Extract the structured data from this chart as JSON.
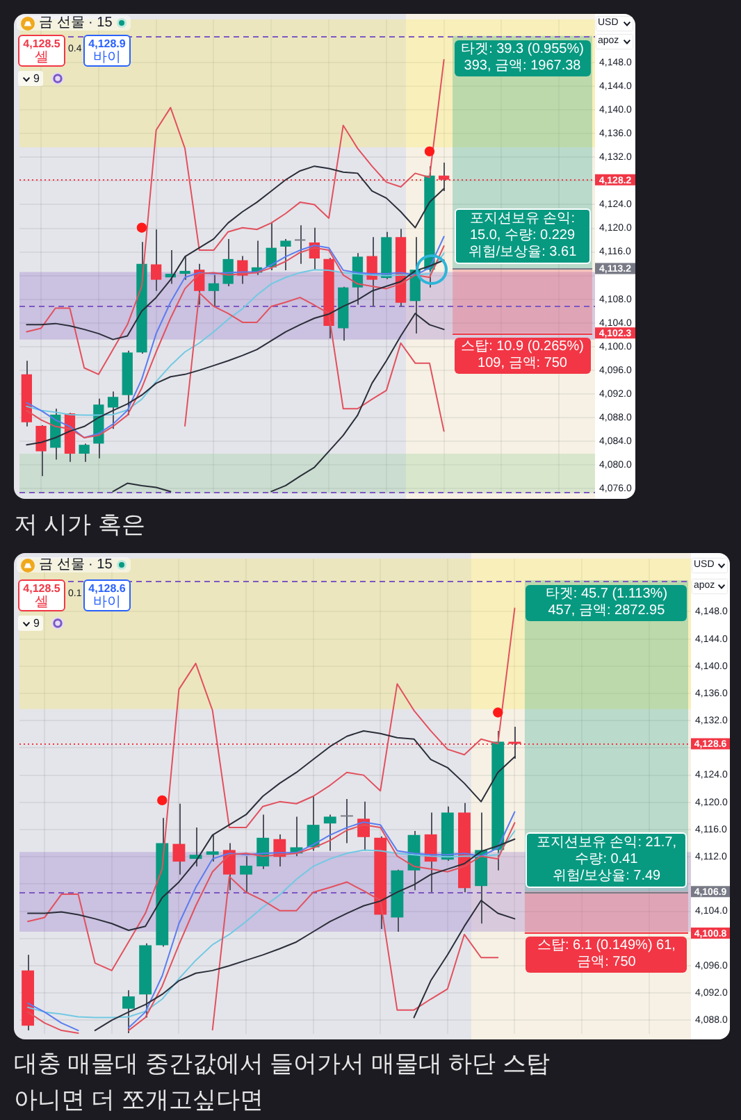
{
  "chart_data": [
    {
      "type": "candlestick",
      "title": "금 선물 · 15",
      "categories": [
        null,
        null,
        null,
        null,
        null,
        null,
        null,
        null,
        null,
        null,
        null,
        null,
        null,
        null,
        null,
        null,
        null,
        null,
        null,
        null,
        null,
        null,
        null,
        null,
        null,
        null,
        null,
        null,
        null,
        null,
        null,
        null,
        null,
        null,
        null,
        null,
        null,
        null,
        null,
        null
      ],
      "ohlc": [
        [
          4095.3,
          4097.6,
          4086.5,
          4087.2
        ],
        [
          4086.6,
          4086.7,
          4078.1,
          4082.3
        ],
        [
          4082.9,
          4089.5,
          4080.9,
          4088.5
        ],
        [
          4088.7,
          4088.8,
          4080.5,
          4081.9
        ],
        [
          4081.9,
          4083.6,
          4080.5,
          4083.4
        ],
        [
          4083.6,
          4091.2,
          4081.1,
          4090.2
        ],
        [
          4089.7,
          4092.4,
          4086.1,
          4091.5
        ],
        [
          4091.8,
          4099.3,
          4088.4,
          4099.0
        ],
        [
          4099.0,
          4117.7,
          4098.8,
          4114.0
        ],
        [
          4113.9,
          4119.8,
          4109.4,
          4111.3
        ],
        [
          4111.7,
          4116.3,
          4110.6,
          4112.3
        ],
        [
          4112.3,
          4115.2,
          4111.3,
          4112.8
        ],
        [
          4113.0,
          4114.0,
          4107.1,
          4109.4
        ],
        [
          4109.4,
          4112.1,
          4106.8,
          4110.7
        ],
        [
          4110.6,
          4118.2,
          4110.2,
          4114.8
        ],
        [
          4114.6,
          4115.3,
          4110.6,
          4112.0
        ],
        [
          4112.5,
          4117.9,
          4112.1,
          4113.4
        ],
        [
          4113.4,
          4120.9,
          4112.9,
          4116.7
        ],
        [
          4116.9,
          4118.2,
          4112.9,
          4117.9
        ],
        [
          4117.9,
          4120.5,
          4114.0,
          4117.9
        ],
        [
          4117.6,
          4120.1,
          4112.9,
          4114.9
        ],
        [
          4114.8,
          4115.0,
          4101.4,
          4103.5
        ],
        [
          4103.1,
          4110.1,
          4101.0,
          4110.0
        ],
        [
          4110.0,
          4115.8,
          4107.1,
          4115.2
        ],
        [
          4115.3,
          4118.5,
          4106.8,
          4111.3
        ],
        [
          4111.6,
          4119.4,
          4111.4,
          4118.5
        ],
        [
          4118.5,
          4119.9,
          4106.8,
          4107.4
        ],
        [
          4107.7,
          4118.5,
          4102.2,
          4113.0
        ],
        [
          4113.0,
          4130.5,
          4110.0,
          4128.9
        ],
        [
          4128.9,
          4131.1,
          4126.3,
          4128.2
        ],
        null,
        null,
        null,
        null,
        null,
        null,
        null,
        null,
        null,
        null
      ],
      "colors": [
        "#f23645",
        "#f23645",
        "#089981",
        "#f23645",
        "#089981",
        "#089981",
        "#089981",
        "#089981",
        "#089981",
        "#f23645",
        "#089981",
        "#089981",
        "#f23645",
        "#089981",
        "#089981",
        "#f23645",
        "#089981",
        "#089981",
        "#089981",
        "#787b86",
        "#f23645",
        "#f23645",
        "#089981",
        "#089981",
        "#f23645",
        "#089981",
        "#f23645",
        "#089981",
        "#089981",
        "#f23645",
        null,
        null,
        null,
        null,
        null,
        null,
        null,
        null,
        null,
        null
      ],
      "series": [
        {
          "type": "line",
          "color": "#2a2e39",
          "values": [
            4103.7,
            4103.7,
            4103.9,
            4103.5,
            4102.9,
            4102.2,
            4101.2,
            4101.8,
            4106.0,
            4108.3,
            4111.3,
            4115.2,
            4116.7,
            4118.2,
            4120.9,
            4122.8,
            4124.4,
            4126.3,
            4128.2,
            4129.7,
            4130.5,
            4130.1,
            4129.5,
            4129.3,
            4126.3,
            4125.1,
            4122.8,
            4120.1,
            4124.4,
            4126.7,
            null,
            null,
            null,
            null,
            null,
            null,
            null,
            null,
            null,
            null
          ]
        },
        {
          "type": "line",
          "color": "#2a2e39",
          "values": [
            4083.4,
            4083.8,
            4084.6,
            4085.7,
            4086.5,
            4088.0,
            4089.2,
            4090.3,
            4091.8,
            4093.8,
            4094.9,
            4095.3,
            4096.0,
            4096.8,
            4097.6,
            4098.5,
            4099.5,
            4101.0,
            4102.5,
            4103.7,
            4104.8,
            4105.5,
            4106.8,
            4107.9,
            4109.4,
            4110.2,
            4111.0,
            4112.8,
            4113.6,
            4114.6,
            null,
            null,
            null,
            null,
            null,
            null,
            null,
            null,
            null,
            null
          ]
        },
        {
          "type": "line",
          "color": "#2a2e39",
          "values": [
            null,
            null,
            null,
            null,
            null,
            null,
            4075.5,
            4076.9,
            4076.5,
            4076.2,
            4075.5,
            null,
            null,
            null,
            null,
            null,
            null,
            4075.5,
            4076.5,
            4078.1,
            4079.6,
            4082.3,
            4085.0,
            4088.4,
            4093.8,
            4097.6,
            4101.8,
            4105.6,
            4103.7,
            4102.9,
            null,
            null,
            null,
            null,
            null,
            null,
            null,
            null,
            null,
            null
          ]
        },
        {
          "type": "line",
          "color": "#e2505e",
          "values": [
            4102.5,
            4103.1,
            4106.5,
            4106.5,
            4096.4,
            4095.3,
            4099.5,
            4103.7,
            4110.2,
            4136.6,
            4140.4,
            4133.5,
            4116.3,
            4116.3,
            4119.4,
            4120.1,
            4119.8,
            4120.9,
            4122.5,
            4124.4,
            4124.0,
            4121.7,
            4137.4,
            4133.5,
            4130.5,
            4127.8,
            4127.0,
            4129.3,
            4128.6,
            4148.5,
            null,
            null,
            null,
            null,
            null,
            null,
            null,
            null,
            null,
            null
          ]
        },
        {
          "type": "line",
          "color": "#e2505e",
          "values": [
            null,
            null,
            null,
            null,
            null,
            null,
            null,
            null,
            null,
            null,
            null,
            4086.6,
            4109.1,
            4106.8,
            4105.6,
            4104.1,
            4104.1,
            4106.8,
            4107.5,
            4108.3,
            4107.0,
            4105.6,
            4089.5,
            4089.5,
            4091.1,
            4092.6,
            4100.6,
            4097.2,
            4097.2,
            4085.7,
            null,
            null,
            null,
            null,
            null,
            null,
            null,
            null,
            null,
            null
          ]
        },
        {
          "type": "line",
          "color": "#e2505e",
          "values": [
            4089.2,
            4087.6,
            4086.5,
            4086.1,
            4084.6,
            4085.0,
            4086.5,
            4088.4,
            4093.0,
            4099.1,
            4104.8,
            4109.8,
            4112.3,
            4112.5,
            4112.1,
            4112.3,
            4112.5,
            4113.3,
            4114.4,
            4115.9,
            4116.7,
            4116.3,
            4112.1,
            4110.6,
            4110.2,
            4109.8,
            4110.6,
            4112.1,
            4111.7,
            4117.0,
            null,
            null,
            null,
            null,
            null,
            null,
            null,
            null,
            null,
            null
          ]
        },
        {
          "type": "line",
          "color": "#5b7cf0",
          "values": [
            4090.5,
            4089.2,
            4087.6,
            4086.5,
            4084.6,
            4085.3,
            4086.9,
            4089.2,
            4094.5,
            4102.2,
            4107.5,
            4111.7,
            4112.5,
            4112.3,
            4112.5,
            4112.6,
            4112.6,
            4113.8,
            4115.2,
            4116.3,
            4117.1,
            4116.7,
            4112.9,
            4112.5,
            4112.3,
            4112.3,
            4112.5,
            4112.1,
            4113.3,
            4118.6,
            null,
            null,
            null,
            null,
            null,
            null,
            null,
            null,
            null,
            null
          ]
        },
        {
          "type": "line",
          "color": "#71c9e3",
          "values": [
            4089.9,
            4089.2,
            4088.9,
            4088.5,
            4088.4,
            4088.4,
            4088.5,
            4089.3,
            4091.1,
            4094.1,
            4096.8,
            4099.1,
            4100.6,
            4102.5,
            4104.6,
            4106.4,
            4108.7,
            4110.6,
            4111.7,
            4112.5,
            4113.0,
            4112.9,
            4112.5,
            4112.3,
            4112.1,
            4112.0,
            4112.1,
            4112.1,
            4112.3,
            4115.8,
            null,
            null,
            null,
            null,
            null,
            null,
            null,
            null,
            null,
            null
          ]
        },
        {
          "type": "scatter",
          "color": "#ff1a1a",
          "marker": "circle",
          "values": [
            null,
            null,
            null,
            null,
            null,
            null,
            null,
            null,
            4120.1,
            null,
            null,
            null,
            null,
            null,
            null,
            null,
            null,
            null,
            null,
            null,
            null,
            null,
            null,
            null,
            null,
            null,
            null,
            null,
            4133.0,
            null,
            null,
            null,
            null,
            null,
            null,
            null,
            null,
            null,
            null,
            null
          ]
        }
      ],
      "ylim": [
        4075.2,
        4155.3
      ],
      "yticks": [
        {
          "value": 4076,
          "label": "4,076.0"
        },
        {
          "value": 4080,
          "label": "4,080.0"
        },
        {
          "value": 4084,
          "label": "4,084.0"
        },
        {
          "value": 4088,
          "label": "4,088.0"
        },
        {
          "value": 4092,
          "label": "4,092.0"
        },
        {
          "value": 4096,
          "label": "4,096.0"
        },
        {
          "value": 4100,
          "label": "4,100.0"
        },
        {
          "value": 4104,
          "label": "4,104.0"
        },
        {
          "value": 4108,
          "label": "4,108.0"
        },
        {
          "value": 4112,
          "label": null
        },
        {
          "value": 4116,
          "label": "4,116.0"
        },
        {
          "value": 4120,
          "label": "4,120.0"
        },
        {
          "value": 4124,
          "label": "4,124.0"
        },
        {
          "value": 4128,
          "label": null
        },
        {
          "value": 4132,
          "label": "4,132.0"
        },
        {
          "value": 4136,
          "label": "4,136.0"
        },
        {
          "value": 4140,
          "label": "4,140.0"
        },
        {
          "value": 4144,
          "label": "4,144.0"
        },
        {
          "value": 4148,
          "label": "4,148.0"
        }
      ],
      "tick_labels": "y",
      "grid": true,
      "bands": [
        {
          "axis": "y",
          "from": 4133.7,
          "to": 4155.3,
          "color": "#ffeb3b"
        },
        {
          "axis": "y",
          "from": 4101.2,
          "to": 4112.6,
          "color": "#7e57c2"
        },
        {
          "axis": "y",
          "from": 4075.2,
          "to": 4081.9,
          "color": "#81c784"
        },
        {
          "axis": "y",
          "from": 4113.2,
          "to": 4152.5,
          "color": "#089981",
          "label": "타겟: 39.3 (0.955%) 393, 금액: 1967.38"
        },
        {
          "axis": "y",
          "from": 4102.3,
          "to": 4113.2,
          "color": "#f23645",
          "label": "스탑: 10.9 (0.265%) 109, 금액: 750"
        }
      ],
      "ref_lines": [
        {
          "axis": "y",
          "value": 4152.5,
          "color": "#7e57c2",
          "line_style": "dashed"
        },
        {
          "axis": "y",
          "value": 4106.8,
          "color": "#7e57c2",
          "line_style": "dashed"
        },
        {
          "axis": "y",
          "value": 4075.4,
          "color": "#7e57c2",
          "line_style": "dashed"
        },
        {
          "axis": "y",
          "value": 4128.2,
          "label": "4,128.2",
          "color": "#f23645",
          "line_style": "dotted"
        },
        {
          "axis": "y",
          "value": 4113.2,
          "label": "4,113.2",
          "color": "#787b86"
        },
        {
          "axis": "y",
          "value": 4102.3,
          "label": "4,102.3",
          "color": "#f23645"
        }
      ],
      "annotations": [
        "4,128.5",
        "셀",
        "0.4",
        "4,128.9",
        "바이",
        "9",
        "USD",
        "apoz",
        {
          "text": "포지션보유 손익: 15.0, 수량: 0.229\n위험/보상율: 3.61",
          "y": 4113.2
        },
        "저 시가 혹은"
      ]
    },
    {
      "type": "candlestick",
      "title": "금 선물 · 15",
      "categories": [
        null,
        null,
        null,
        null,
        null,
        null,
        null,
        null,
        null,
        null,
        null,
        null,
        null,
        null,
        null,
        null,
        null,
        null,
        null,
        null,
        null,
        null,
        null,
        null,
        null,
        null,
        null,
        null,
        null,
        null,
        null,
        null,
        null,
        null,
        null,
        null,
        null,
        null,
        null,
        null
      ],
      "ohlc": [
        [
          4095.3,
          4097.6,
          4086.5,
          4087.2
        ],
        null,
        null,
        null,
        null,
        null,
        [
          4089.7,
          4092.4,
          4086.1,
          4091.5
        ],
        [
          4091.8,
          4099.3,
          4088.4,
          4099.0
        ],
        [
          4099.0,
          4117.7,
          4098.8,
          4114.0
        ],
        [
          4113.9,
          4119.8,
          4109.4,
          4111.3
        ],
        [
          4111.7,
          4116.3,
          4110.6,
          4112.3
        ],
        [
          4112.3,
          4115.2,
          4111.3,
          4112.8
        ],
        [
          4113.0,
          4114.0,
          4107.1,
          4109.4
        ],
        [
          4109.4,
          4112.1,
          4106.8,
          4110.7
        ],
        [
          4110.6,
          4118.2,
          4110.2,
          4114.8
        ],
        [
          4114.6,
          4115.3,
          4110.6,
          4112.0
        ],
        [
          4112.5,
          4117.9,
          4112.1,
          4113.4
        ],
        [
          4113.4,
          4120.9,
          4112.9,
          4116.7
        ],
        [
          4116.9,
          4118.2,
          4112.9,
          4117.9
        ],
        [
          4117.9,
          4120.5,
          4114.0,
          4117.9
        ],
        [
          4117.6,
          4120.1,
          4112.9,
          4114.9
        ],
        [
          4114.8,
          4115.0,
          4101.4,
          4103.5
        ],
        [
          4103.1,
          4110.1,
          4101.0,
          4110.0
        ],
        [
          4110.0,
          4115.8,
          4107.1,
          4115.2
        ],
        [
          4115.3,
          4118.5,
          4106.8,
          4111.3
        ],
        [
          4111.6,
          4119.4,
          4111.4,
          4118.5
        ],
        [
          4118.5,
          4119.9,
          4106.8,
          4107.4
        ],
        [
          4107.7,
          4118.5,
          4102.2,
          4113.0
        ],
        [
          4113.0,
          4130.5,
          4110.0,
          4128.9
        ],
        [
          4128.9,
          4131.1,
          4126.4,
          4128.6
        ],
        null,
        null,
        null,
        null,
        null,
        null,
        null,
        null,
        null,
        null
      ],
      "colors": [
        "#f23645",
        null,
        null,
        null,
        null,
        null,
        "#089981",
        "#089981",
        "#089981",
        "#f23645",
        "#089981",
        "#089981",
        "#f23645",
        "#089981",
        "#089981",
        "#f23645",
        "#089981",
        "#089981",
        "#089981",
        "#787b86",
        "#f23645",
        "#f23645",
        "#089981",
        "#089981",
        "#f23645",
        "#089981",
        "#f23645",
        "#089981",
        "#089981",
        "#f23645",
        null,
        null,
        null,
        null,
        null,
        null,
        null,
        null,
        null,
        null
      ],
      "series": [
        {
          "type": "line",
          "color": "#2a2e39",
          "values": [
            4103.7,
            4103.7,
            4103.9,
            4103.5,
            4102.9,
            4102.2,
            4101.2,
            4101.8,
            4106.0,
            4108.3,
            4111.3,
            4115.2,
            4116.7,
            4118.2,
            4120.9,
            4122.8,
            4124.4,
            4126.3,
            4128.2,
            4129.7,
            4130.5,
            4130.1,
            4129.5,
            4129.3,
            4126.3,
            4125.1,
            4122.8,
            4120.1,
            4124.4,
            4126.7,
            null,
            null,
            null,
            null,
            null,
            null,
            null,
            null,
            null,
            null
          ]
        },
        {
          "type": "line",
          "color": "#2a2e39",
          "values": [
            null,
            null,
            null,
            null,
            4086.5,
            4088.0,
            4089.2,
            4090.3,
            4091.8,
            4093.8,
            4094.9,
            4095.3,
            4096.0,
            4096.8,
            4097.6,
            4098.5,
            4099.5,
            4101.0,
            4102.5,
            4103.7,
            4104.8,
            4105.5,
            4106.8,
            4107.9,
            4109.4,
            4110.2,
            4111.0,
            4112.8,
            4113.6,
            4114.6,
            null,
            null,
            null,
            null,
            null,
            null,
            null,
            null,
            null,
            null
          ]
        },
        {
          "type": "line",
          "color": "#2a2e39",
          "values": [
            null,
            null,
            null,
            null,
            null,
            null,
            null,
            null,
            null,
            null,
            null,
            null,
            null,
            null,
            null,
            null,
            null,
            null,
            null,
            null,
            null,
            null,
            null,
            4088.4,
            4093.8,
            4097.6,
            4101.8,
            4105.6,
            4103.7,
            4102.9,
            null,
            null,
            null,
            null,
            null,
            null,
            null,
            null,
            null,
            null
          ]
        },
        {
          "type": "line",
          "color": "#e2505e",
          "values": [
            4102.5,
            4103.1,
            4106.5,
            4106.5,
            4096.4,
            4095.3,
            4099.5,
            4103.7,
            4110.2,
            4136.6,
            4140.4,
            4133.5,
            4116.3,
            4116.3,
            4119.4,
            4120.1,
            4119.8,
            4120.9,
            4122.5,
            4124.4,
            4124.0,
            4121.7,
            4137.4,
            4133.5,
            4130.5,
            4127.8,
            4127.0,
            4129.3,
            4128.6,
            4148.5,
            null,
            null,
            null,
            null,
            null,
            null,
            null,
            null,
            null,
            null
          ]
        },
        {
          "type": "line",
          "color": "#e2505e",
          "values": [
            null,
            null,
            null,
            null,
            null,
            null,
            null,
            null,
            null,
            null,
            null,
            4086.6,
            4109.1,
            4106.8,
            4105.6,
            4104.1,
            4104.1,
            4106.8,
            4107.5,
            4108.3,
            4107.0,
            4105.6,
            4089.5,
            4089.5,
            4091.1,
            4092.6,
            4100.6,
            4097.2,
            4097.2,
            null,
            null,
            null,
            null,
            null,
            null,
            null,
            null,
            null,
            null,
            null
          ]
        },
        {
          "type": "line",
          "color": "#e2505e",
          "values": [
            4089.2,
            4087.6,
            4086.5,
            4086.1,
            null,
            null,
            4086.5,
            4088.4,
            4093.0,
            4099.1,
            4104.8,
            4109.8,
            4112.3,
            4112.5,
            4112.1,
            4112.3,
            4112.5,
            4113.3,
            4114.4,
            4115.9,
            4116.7,
            4116.3,
            4112.1,
            4110.6,
            4110.2,
            4109.8,
            4110.6,
            4112.1,
            4111.7,
            4117.0,
            null,
            null,
            null,
            null,
            null,
            null,
            null,
            null,
            null,
            null
          ]
        },
        {
          "type": "line",
          "color": "#5b7cf0",
          "values": [
            4090.5,
            4089.2,
            4087.6,
            4086.5,
            null,
            null,
            4086.9,
            4089.2,
            4094.5,
            4102.2,
            4107.5,
            4111.7,
            4112.5,
            4112.3,
            4112.5,
            4112.6,
            4112.6,
            4113.8,
            4115.2,
            4116.3,
            4117.1,
            4116.7,
            4112.9,
            4112.5,
            4112.3,
            4112.3,
            4112.5,
            4112.1,
            4113.3,
            4118.6,
            null,
            null,
            null,
            null,
            null,
            null,
            null,
            null,
            null,
            null
          ]
        },
        {
          "type": "line",
          "color": "#71c9e3",
          "values": [
            4089.9,
            4089.2,
            4088.9,
            4088.5,
            4088.4,
            4088.4,
            4088.5,
            4089.3,
            4091.1,
            4094.1,
            4096.8,
            4099.1,
            4100.6,
            4102.5,
            4104.6,
            4106.4,
            4108.7,
            4110.6,
            4111.7,
            4112.5,
            4113.0,
            4112.9,
            4112.5,
            4112.3,
            4112.1,
            4112.0,
            4112.1,
            4112.1,
            4112.3,
            4115.8,
            null,
            null,
            null,
            null,
            null,
            null,
            null,
            null,
            null,
            null
          ]
        },
        {
          "type": "scatter",
          "color": "#ff1a1a",
          "marker": "circle",
          "values": [
            null,
            null,
            null,
            null,
            null,
            null,
            null,
            null,
            4120.3,
            null,
            null,
            null,
            null,
            null,
            null,
            null,
            null,
            null,
            null,
            null,
            null,
            null,
            null,
            null,
            null,
            null,
            null,
            null,
            4133.2,
            null,
            null,
            null,
            null,
            null,
            null,
            null,
            null,
            null,
            null,
            null
          ]
        }
      ],
      "ylim": [
        4086.0,
        4155.8
      ],
      "yticks": [
        {
          "value": 4088,
          "label": "4,088.0"
        },
        {
          "value": 4092,
          "label": "4,092.0"
        },
        {
          "value": 4096,
          "label": "4,096.0"
        },
        {
          "value": 4100,
          "label": null
        },
        {
          "value": 4104,
          "label": "4,104.0"
        },
        {
          "value": 4108,
          "label": null
        },
        {
          "value": 4112,
          "label": "4,112.0"
        },
        {
          "value": 4116,
          "label": "4,116.0"
        },
        {
          "value": 4120,
          "label": "4,120.0"
        },
        {
          "value": 4124,
          "label": "4,124.0"
        },
        {
          "value": 4128,
          "label": null
        },
        {
          "value": 4132,
          "label": "4,132.0"
        },
        {
          "value": 4136,
          "label": "4,136.0"
        },
        {
          "value": 4140,
          "label": "4,140.0"
        },
        {
          "value": 4144,
          "label": "4,144.0"
        },
        {
          "value": 4148,
          "label": "4,148.0"
        }
      ],
      "tick_labels": "y",
      "grid": true,
      "bands": [
        {
          "axis": "y",
          "from": 4133.7,
          "to": 4155.8,
          "color": "#ffeb3b"
        },
        {
          "axis": "y",
          "from": 4101.0,
          "to": 4112.7,
          "color": "#7e57c2"
        },
        {
          "axis": "y",
          "from": 4106.9,
          "to": 4152.6,
          "color": "#089981",
          "label": "타겟: 45.7 (1.113%) 457, 금액: 2872.95"
        },
        {
          "axis": "y",
          "from": 4100.8,
          "to": 4106.9,
          "color": "#f23645",
          "label": "스탑: 6.1 (0.149%) 61, 금액: 750"
        }
      ],
      "ref_lines": [
        {
          "axis": "y",
          "value": 4152.5,
          "color": "#7e57c2",
          "line_style": "dashed"
        },
        {
          "axis": "y",
          "value": 4106.9,
          "color": "#7e57c2",
          "line_style": "dashed"
        },
        {
          "axis": "y",
          "value": 4128.6,
          "label": "4,128.6",
          "color": "#f23645",
          "line_style": "dotted"
        },
        {
          "axis": "y",
          "value": 4106.9,
          "label": "4,106.9",
          "color": "#787b86"
        },
        {
          "axis": "y",
          "value": 4100.8,
          "label": "4,100.8",
          "color": "#f23645"
        }
      ],
      "annotations": [
        "4,128.5",
        "셀",
        "0.1",
        "4,128.6",
        "바이",
        "9",
        "USD",
        "apoz",
        {
          "text": "포지션보유 손익: 21.7, 수량: 0.41\n위험/보상율: 7.49",
          "y": 4106.9
        },
        "대충 매물대 중간값에서 들어가서 매물대 하단 스탑\n아니면 더 쪼개고싶다면"
      ]
    }
  ]
}
